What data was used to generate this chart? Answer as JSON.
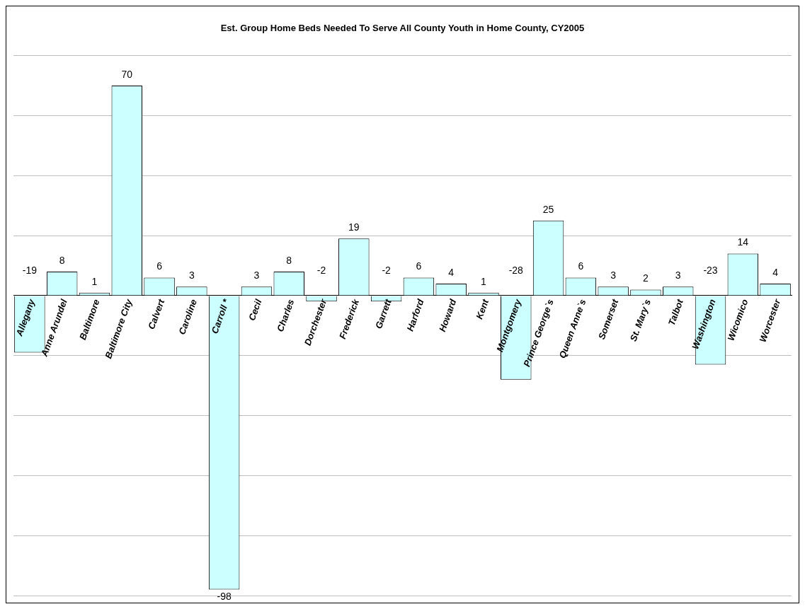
{
  "chart_data": {
    "type": "bar",
    "title": "Est. Group Home Beds Needed To Serve All County Youth in Home County, CY2005",
    "categories": [
      "Allegany",
      "Anne Arundel",
      "Baltimore",
      "Baltimore City",
      "Calvert",
      "Caroline",
      "Carroll *",
      "Cecil",
      "Charles",
      "Dorchester",
      "Frederick",
      "Garrett",
      "Harford",
      "Howard",
      "Kent",
      "Montgomery",
      "Prince George`s",
      "Queen Anne`s",
      "Somerset",
      "St. Mary`s",
      "Talbot",
      "Washington",
      "Wicomico",
      "Worcester"
    ],
    "values": [
      -19,
      8,
      1,
      70,
      6,
      3,
      -98,
      3,
      8,
      -2,
      19,
      -2,
      6,
      4,
      1,
      -28,
      25,
      6,
      3,
      2,
      3,
      -23,
      14,
      4
    ],
    "color": "#ccffff",
    "grid": "y",
    "tick_labels": "x",
    "data_labels": true,
    "legend": false
  }
}
